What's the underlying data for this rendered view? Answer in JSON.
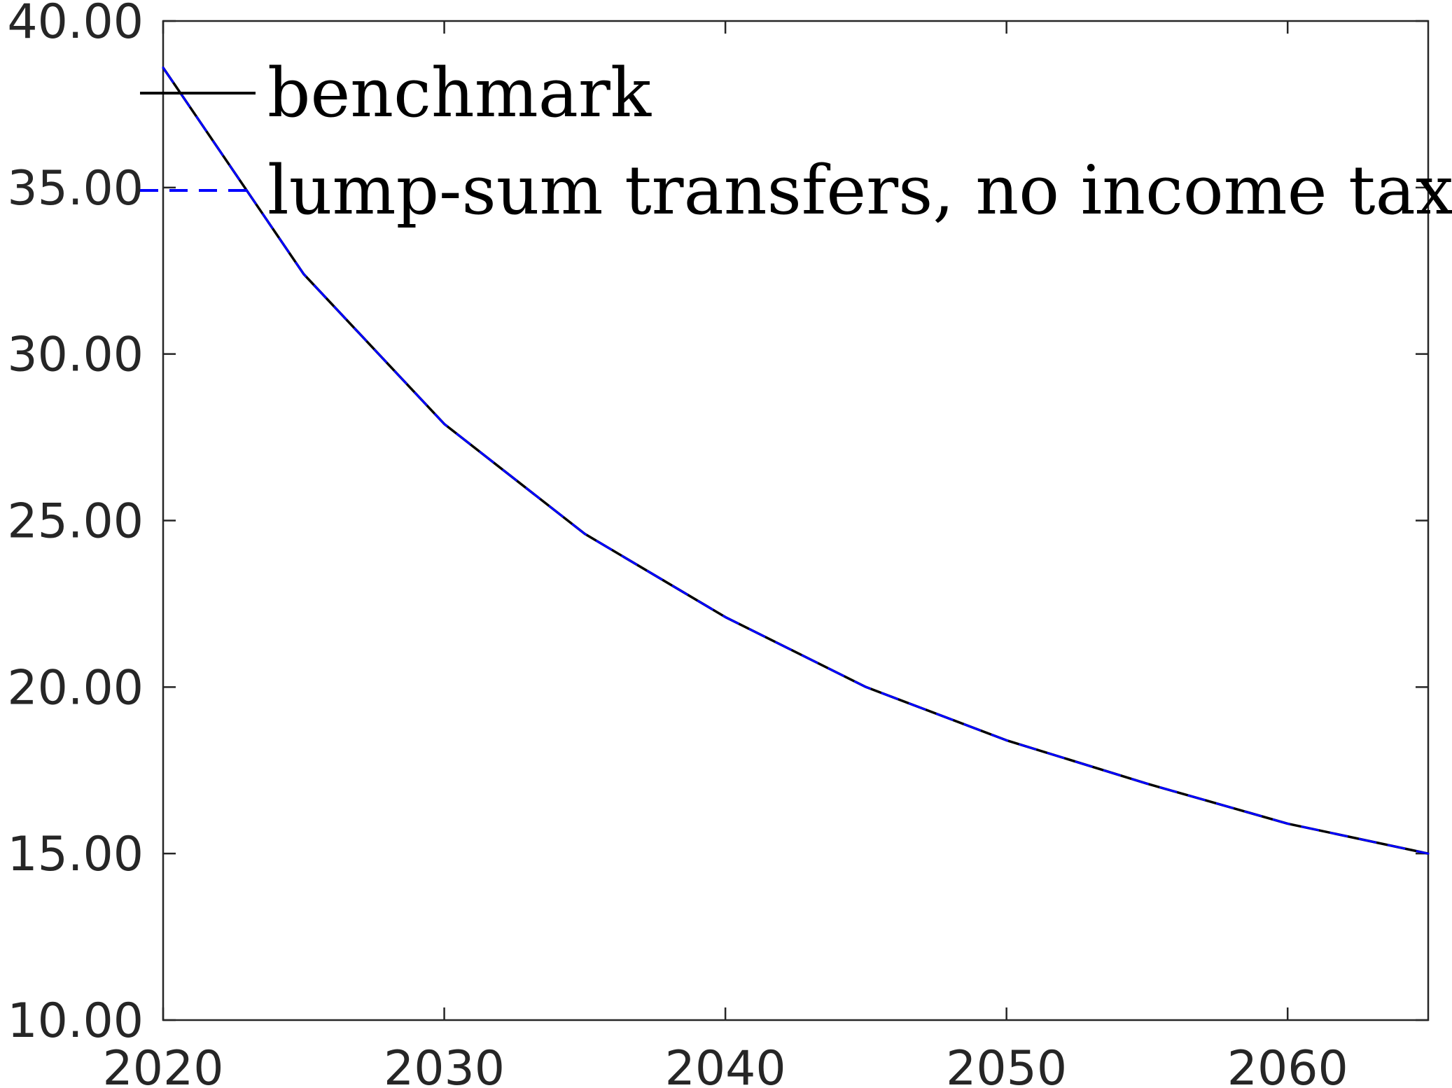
{
  "chart_data": {
    "type": "line",
    "title": "",
    "xlabel": "",
    "ylabel": "",
    "xlim": [
      2020,
      2065
    ],
    "ylim": [
      10,
      40
    ],
    "x_ticks": [
      2020,
      2030,
      2040,
      2050,
      2060
    ],
    "x_tick_labels": [
      "2020",
      "2030",
      "2040",
      "2050",
      "2060"
    ],
    "y_ticks": [
      10,
      15,
      20,
      25,
      30,
      35,
      40
    ],
    "y_tick_labels": [
      "10.00",
      "15.00",
      "20.00",
      "25.00",
      "30.00",
      "35.00",
      "40.00"
    ],
    "grid": false,
    "legend_position": "top-left",
    "x": [
      2020,
      2025,
      2030,
      2035,
      2040,
      2045,
      2050,
      2055,
      2060,
      2065
    ],
    "series": [
      {
        "name": "benchmark",
        "color": "#000000",
        "line_style": "solid",
        "values": [
          38.6,
          32.4,
          27.9,
          24.6,
          22.1,
          20.0,
          18.4,
          17.1,
          15.9,
          15.0
        ]
      },
      {
        "name": "lump-sum transfers, no income tax",
        "color": "#0000ff",
        "line_style": "dashed",
        "values": [
          38.6,
          32.4,
          27.9,
          24.6,
          22.1,
          20.0,
          18.4,
          17.1,
          15.9,
          15.0
        ]
      }
    ]
  }
}
